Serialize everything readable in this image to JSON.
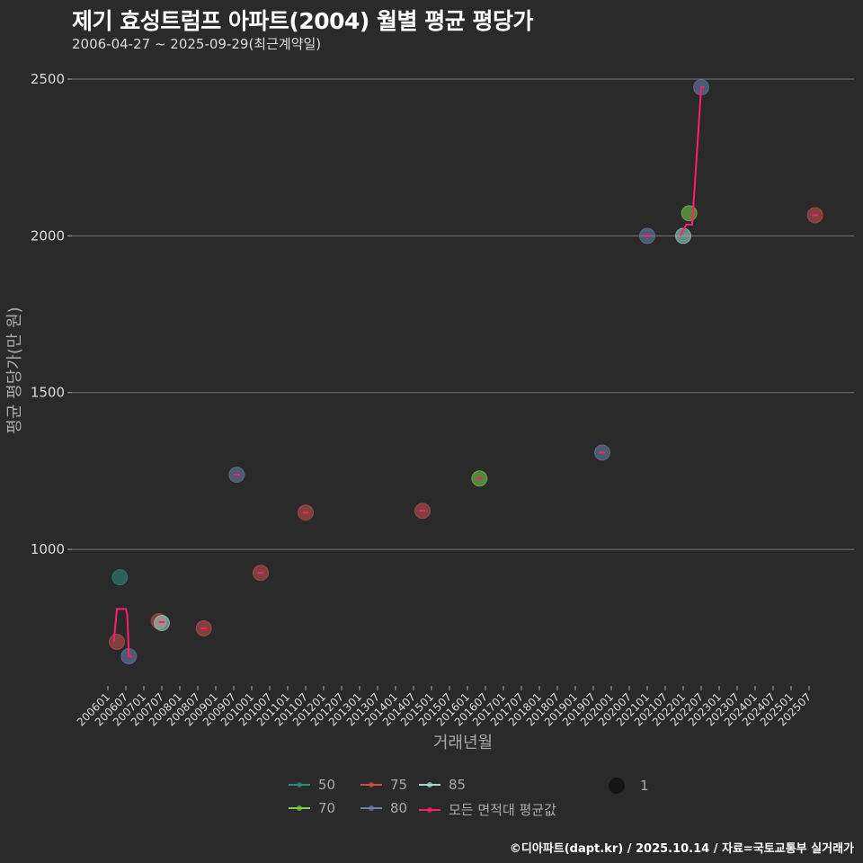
{
  "title": "제기 효성트럼프 아파트(2004) 월별 평균 평당가",
  "subtitle": "2006-04-27 ~ 2025-09-29(최근계약일)",
  "footer": "©디아파트(dapt.kr) / 2025.10.14 / 자료=국토교통부 실거래가",
  "chart_data": {
    "type": "scatter",
    "xlabel": "거래년월",
    "ylabel": "평균 평당가(만 원)",
    "ylim": [
      573,
      2566
    ],
    "xlim": [
      "2005-12",
      "2025-12"
    ],
    "yticks": [
      1000,
      1500,
      2000,
      2500
    ],
    "xticks": [
      "200601",
      "200607",
      "200701",
      "200707",
      "200801",
      "200807",
      "200901",
      "200907",
      "201001",
      "201007",
      "201101",
      "201107",
      "201201",
      "201207",
      "201301",
      "201307",
      "201401",
      "201407",
      "201501",
      "201507",
      "201601",
      "201607",
      "201701",
      "201707",
      "201801",
      "201807",
      "201901",
      "201907",
      "202001",
      "202007",
      "202101",
      "202107",
      "202201",
      "202207",
      "202301",
      "202307",
      "202401",
      "202407",
      "202501",
      "202507"
    ],
    "grid": "horizontal",
    "legend_position": "bottom",
    "colors": {
      "50": "#2f8a84",
      "70": "#7ad04f",
      "75": "#c9504c",
      "80": "#6b80ad",
      "85": "#9fdcd2",
      "mean": "#ff1f6e"
    },
    "series": [
      {
        "name": "50",
        "points": [
          [
            "2006-05",
            911
          ]
        ]
      },
      {
        "name": "70",
        "points": [
          [
            "2016-05",
            1226
          ],
          [
            "2022-03",
            2072
          ]
        ]
      },
      {
        "name": "75",
        "points": [
          [
            "2006-04",
            705
          ],
          [
            "2007-06",
            771
          ],
          [
            "2008-09",
            748
          ],
          [
            "2010-04",
            925
          ],
          [
            "2011-07",
            1117
          ],
          [
            "2014-10",
            1123
          ],
          [
            "2025-09",
            2066
          ]
        ]
      },
      {
        "name": "80",
        "points": [
          [
            "2006-08",
            659
          ],
          [
            "2009-08",
            1238
          ],
          [
            "2019-10",
            1309
          ],
          [
            "2021-01",
            2000
          ],
          [
            "2022-07",
            2474
          ]
        ]
      },
      {
        "name": "85",
        "points": [
          [
            "2007-07",
            765
          ],
          [
            "2022-01",
            2000
          ]
        ]
      }
    ],
    "mean_series": {
      "name": "모든 면적대 평균값",
      "segments": [
        [
          [
            "2006-03",
            705
          ],
          [
            "2006-04",
            810
          ],
          [
            "2006-07",
            810
          ],
          [
            "2006-07.5",
            790
          ],
          [
            "2006-08",
            659
          ],
          [
            "2006-09",
            659
          ]
        ],
        [
          [
            "2007-06",
            768
          ],
          [
            "2007-08",
            768
          ]
        ],
        [
          [
            "2008-08",
            748
          ],
          [
            "2008-10",
            748
          ]
        ],
        [
          [
            "2009-07",
            1238
          ],
          [
            "2009-09",
            1238
          ]
        ],
        [
          [
            "2010-03",
            925
          ],
          [
            "2010-05",
            925
          ]
        ],
        [
          [
            "2011-06",
            1117
          ],
          [
            "2011-08",
            1117
          ]
        ],
        [
          [
            "2014-09",
            1123
          ],
          [
            "2014-11",
            1123
          ]
        ],
        [
          [
            "2016-04",
            1226
          ],
          [
            "2016-06",
            1226
          ]
        ],
        [
          [
            "2019-09",
            1309
          ],
          [
            "2019-11",
            1309
          ]
        ],
        [
          [
            "2020-12",
            2000
          ],
          [
            "2021-02",
            2000
          ]
        ],
        [
          [
            "2021-12",
            2000
          ],
          [
            "2022-02",
            2036
          ],
          [
            "2022-04",
            2036
          ],
          [
            "2022-07",
            2474
          ],
          [
            "2022-08",
            2474
          ]
        ],
        [
          [
            "2025-08",
            2066
          ],
          [
            "2025-10",
            2066
          ]
        ]
      ]
    },
    "legend": {
      "items": [
        "50",
        "75",
        "85",
        "70",
        "80",
        "모든 면적대 평균값"
      ],
      "size_label": "1"
    }
  }
}
